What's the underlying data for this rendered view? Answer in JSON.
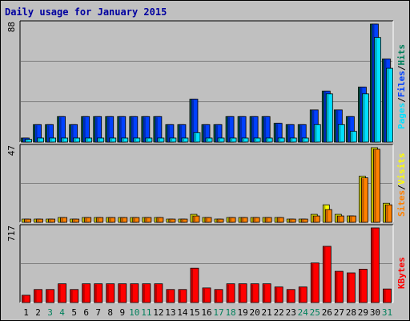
{
  "title": "Daily usage for January 2015",
  "colors": {
    "hits": "#00805c",
    "files": "#0040ff",
    "pages": "#00e0ff",
    "visits": "#ffff00",
    "sites": "#ff8000",
    "kbytes": "#ff0000",
    "weekend_day": "#00805c",
    "weekday": "#000000",
    "grid": "#808080",
    "panel_bg": "#c0c0c0"
  },
  "chart_data": [
    {
      "type": "bar",
      "panel": "top",
      "y_max_label": "88",
      "ylim": [
        0,
        88
      ],
      "categories": [
        "1",
        "2",
        "3",
        "4",
        "5",
        "6",
        "7",
        "8",
        "9",
        "10",
        "11",
        "12",
        "13",
        "14",
        "15",
        "16",
        "17",
        "18",
        "19",
        "20",
        "21",
        "22",
        "23",
        "24",
        "25",
        "26",
        "27",
        "28",
        "29",
        "30",
        "31"
      ],
      "legend": [
        {
          "key": "pages",
          "text": "Pages"
        },
        {
          "key": "sep1",
          "text": "/"
        },
        {
          "key": "files",
          "text": "Files"
        },
        {
          "key": "sep2",
          "text": "/"
        },
        {
          "key": "hits",
          "text": "Hits"
        }
      ],
      "series": [
        {
          "key": "hits",
          "values": [
            3,
            13,
            13,
            19,
            13,
            19,
            19,
            19,
            19,
            19,
            19,
            19,
            13,
            13,
            32,
            13,
            13,
            19,
            19,
            19,
            19,
            14,
            13,
            13,
            24,
            38,
            24,
            19,
            41,
            88,
            62
          ]
        },
        {
          "key": "files",
          "values": [
            3,
            13,
            13,
            19,
            13,
            19,
            19,
            19,
            19,
            19,
            19,
            19,
            13,
            13,
            32,
            13,
            13,
            19,
            19,
            19,
            19,
            14,
            13,
            13,
            24,
            38,
            24,
            19,
            41,
            88,
            62
          ]
        },
        {
          "key": "pages",
          "values": [
            2,
            3,
            3,
            3,
            3,
            3,
            3,
            3,
            3,
            3,
            3,
            3,
            3,
            3,
            7,
            3,
            3,
            3,
            3,
            3,
            3,
            3,
            3,
            3,
            13,
            36,
            13,
            8,
            36,
            78,
            55
          ]
        }
      ]
    },
    {
      "type": "bar",
      "panel": "middle",
      "y_max_label": "47",
      "ylim": [
        0,
        47
      ],
      "categories": [
        "1",
        "2",
        "3",
        "4",
        "5",
        "6",
        "7",
        "8",
        "9",
        "10",
        "11",
        "12",
        "13",
        "14",
        "15",
        "16",
        "17",
        "18",
        "19",
        "20",
        "21",
        "22",
        "23",
        "24",
        "25",
        "26",
        "27",
        "28",
        "29",
        "30",
        "31"
      ],
      "legend": [
        {
          "key": "sites",
          "text": "Sites"
        },
        {
          "key": "sep1",
          "text": "/"
        },
        {
          "key": "visits",
          "text": "Visits"
        }
      ],
      "series": [
        {
          "key": "visits",
          "values": [
            2,
            2,
            2,
            3,
            2,
            3,
            3,
            3,
            3,
            3,
            3,
            3,
            2,
            2,
            5,
            3,
            2,
            3,
            3,
            3,
            3,
            3,
            2,
            2,
            5,
            11,
            5,
            4,
            29,
            47,
            12
          ]
        },
        {
          "key": "sites",
          "values": [
            2,
            2,
            2,
            3,
            2,
            3,
            3,
            3,
            3,
            3,
            3,
            3,
            2,
            2,
            4,
            3,
            2,
            3,
            3,
            3,
            3,
            3,
            2,
            2,
            4,
            8,
            4,
            4,
            28,
            46,
            11
          ]
        }
      ]
    },
    {
      "type": "bar",
      "panel": "bottom",
      "y_max_label": "717",
      "ylim": [
        0,
        717
      ],
      "categories": [
        "1",
        "2",
        "3",
        "4",
        "5",
        "6",
        "7",
        "8",
        "9",
        "10",
        "11",
        "12",
        "13",
        "14",
        "15",
        "16",
        "17",
        "18",
        "19",
        "20",
        "21",
        "22",
        "23",
        "24",
        "25",
        "26",
        "27",
        "28",
        "29",
        "30",
        "31"
      ],
      "legend": [
        {
          "key": "kbytes",
          "text": "KBytes"
        }
      ],
      "series": [
        {
          "key": "kbytes",
          "values": [
            70,
            125,
            125,
            180,
            125,
            180,
            180,
            180,
            180,
            180,
            180,
            180,
            125,
            125,
            330,
            140,
            125,
            180,
            180,
            180,
            180,
            150,
            125,
            150,
            380,
            540,
            300,
            285,
            320,
            717,
            130
          ]
        }
      ]
    }
  ],
  "x_axis": {
    "labels": [
      "1",
      "2",
      "3",
      "4",
      "5",
      "6",
      "7",
      "8",
      "9",
      "10",
      "11",
      "12",
      "13",
      "14",
      "15",
      "16",
      "17",
      "18",
      "19",
      "20",
      "21",
      "22",
      "23",
      "24",
      "25",
      "26",
      "27",
      "28",
      "29",
      "30",
      "31"
    ],
    "weekend": [
      3,
      4,
      10,
      11,
      17,
      18,
      24,
      25,
      31
    ]
  }
}
